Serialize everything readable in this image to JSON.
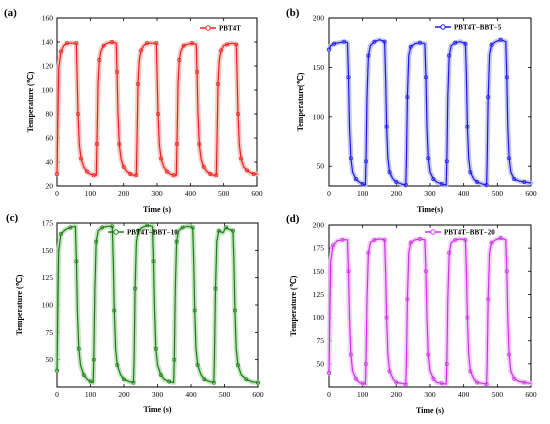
{
  "chart_data": [
    {
      "type": "line",
      "panel_label": "(a)",
      "xlabel": "Time (s)",
      "ylabel": "Temperature (℃)",
      "xlim": [
        0,
        600
      ],
      "ylim": [
        20,
        160
      ],
      "xticks": [
        0,
        100,
        200,
        300,
        400,
        500,
        600
      ],
      "yticks": [
        20,
        40,
        60,
        80,
        100,
        120,
        140,
        160
      ],
      "legend_position": "top-right",
      "series": [
        {
          "name": "PBT4T",
          "color": "#e8221b",
          "band_color": "#f7b7b4",
          "x": [
            0,
            5,
            12,
            20,
            30,
            45,
            58,
            60,
            63,
            67,
            72,
            80,
            90,
            100,
            110,
            118,
            120,
            123,
            127,
            132,
            140,
            150,
            165,
            178,
            180,
            183,
            187,
            192,
            200,
            210,
            220,
            230,
            238,
            240,
            243,
            247,
            252,
            260,
            270,
            285,
            298,
            300,
            303,
            307,
            312,
            320,
            330,
            340,
            350,
            358,
            360,
            363,
            367,
            372,
            380,
            390,
            405,
            418,
            420,
            423,
            427,
            432,
            440,
            450,
            460,
            470,
            478,
            480,
            483,
            487,
            492,
            500,
            510,
            525,
            538,
            540,
            543,
            547,
            552,
            560,
            570,
            580,
            590,
            600
          ],
          "y": [
            30,
            118,
            132,
            137,
            139,
            139,
            139,
            115,
            80,
            55,
            43,
            36,
            32,
            30,
            29,
            29,
            55,
            105,
            125,
            133,
            137,
            139,
            140,
            139,
            115,
            80,
            55,
            43,
            36,
            32,
            30,
            29,
            29,
            55,
            105,
            125,
            133,
            137,
            139,
            139,
            139,
            115,
            80,
            55,
            43,
            36,
            32,
            30,
            29,
            29,
            55,
            105,
            125,
            133,
            137,
            138,
            139,
            138,
            115,
            80,
            55,
            43,
            36,
            32,
            30,
            29,
            29,
            55,
            105,
            125,
            133,
            137,
            138,
            139,
            138,
            115,
            80,
            55,
            43,
            36,
            33,
            31,
            30,
            30
          ]
        }
      ]
    },
    {
      "type": "line",
      "panel_label": "(b)",
      "xlabel": "Time(s)",
      "ylabel": "Temperature(℃)",
      "xlim": [
        0,
        600
      ],
      "ylim": [
        30,
        200
      ],
      "xticks": [
        0,
        100,
        200,
        300,
        400,
        500,
        600
      ],
      "yticks": [
        50,
        100,
        150,
        200
      ],
      "legend_position": "top-right",
      "series": [
        {
          "name": "PBT4T−BBT−5",
          "color": "#1a1ae6",
          "band_color": "#b9b9f5",
          "x": [
            0,
            5,
            15,
            30,
            45,
            55,
            58,
            61,
            65,
            70,
            80,
            90,
            100,
            108,
            110,
            113,
            117,
            123,
            135,
            150,
            165,
            168,
            171,
            175,
            180,
            190,
            200,
            215,
            228,
            230,
            233,
            237,
            243,
            255,
            270,
            285,
            288,
            291,
            295,
            300,
            310,
            320,
            335,
            348,
            350,
            353,
            357,
            363,
            375,
            390,
            405,
            408,
            411,
            415,
            420,
            430,
            440,
            455,
            468,
            470,
            473,
            477,
            483,
            495,
            510,
            525,
            528,
            531,
            535,
            540,
            550,
            565,
            580,
            600
          ],
          "y": [
            168,
            172,
            174,
            175,
            176,
            175,
            140,
            90,
            58,
            44,
            37,
            34,
            32,
            31,
            55,
            120,
            162,
            172,
            176,
            178,
            176,
            140,
            90,
            58,
            44,
            37,
            34,
            32,
            31,
            55,
            120,
            162,
            171,
            174,
            175,
            174,
            140,
            90,
            58,
            44,
            37,
            34,
            32,
            31,
            55,
            120,
            162,
            172,
            175,
            176,
            174,
            140,
            90,
            58,
            44,
            37,
            34,
            32,
            31,
            55,
            120,
            163,
            173,
            176,
            178,
            176,
            140,
            90,
            58,
            44,
            37,
            35,
            34,
            33
          ]
        }
      ]
    },
    {
      "type": "line",
      "panel_label": "(c)",
      "xlabel": "Time (s)",
      "ylabel": "Temperature (℃)",
      "xlim": [
        0,
        600
      ],
      "ylim": [
        25,
        175
      ],
      "xticks": [
        0,
        100,
        200,
        300,
        400,
        500,
        600
      ],
      "yticks": [
        50,
        75,
        100,
        125,
        150,
        175
      ],
      "legend_position": "top-center",
      "series": [
        {
          "name": "PBT4T−BBT−10",
          "color": "#1e7d16",
          "band_color": "#b5dcb1",
          "x": [
            0,
            5,
            12,
            25,
            40,
            55,
            58,
            61,
            65,
            70,
            80,
            90,
            100,
            108,
            110,
            113,
            117,
            123,
            135,
            150,
            165,
            168,
            171,
            175,
            180,
            190,
            200,
            215,
            228,
            230,
            233,
            237,
            243,
            255,
            270,
            285,
            288,
            291,
            295,
            300,
            310,
            320,
            335,
            348,
            350,
            353,
            357,
            363,
            375,
            390,
            405,
            408,
            411,
            415,
            420,
            430,
            440,
            455,
            468,
            470,
            473,
            477,
            483,
            495,
            505,
            515,
            525,
            528,
            531,
            535,
            540,
            550,
            565,
            580,
            600
          ],
          "y": [
            40,
            150,
            165,
            169,
            171,
            172,
            140,
            95,
            60,
            45,
            36,
            32,
            30,
            29,
            50,
            115,
            158,
            168,
            171,
            172,
            172,
            140,
            95,
            60,
            45,
            36,
            32,
            30,
            29,
            50,
            115,
            158,
            168,
            171,
            173,
            172,
            140,
            95,
            60,
            45,
            36,
            32,
            30,
            29,
            50,
            115,
            158,
            168,
            171,
            172,
            171,
            140,
            95,
            60,
            45,
            36,
            32,
            30,
            29,
            50,
            115,
            158,
            168,
            166,
            171,
            169,
            168,
            140,
            95,
            60,
            45,
            36,
            32,
            30,
            29
          ]
        }
      ]
    },
    {
      "type": "line",
      "panel_label": "(d)",
      "xlabel": "Time (s)",
      "ylabel": "Temperature (℃)",
      "xlim": [
        0,
        600
      ],
      "ylim": [
        25,
        200
      ],
      "xticks": [
        0,
        100,
        200,
        300,
        400,
        500,
        600
      ],
      "yticks": [
        50,
        75,
        100,
        125,
        150,
        175,
        200
      ],
      "legend_position": "top-right",
      "series": [
        {
          "name": "PBT4T−BBT−20",
          "color": "#cc33e6",
          "band_color": "#efc2f7",
          "x": [
            0,
            5,
            12,
            25,
            40,
            55,
            58,
            61,
            65,
            70,
            80,
            90,
            100,
            108,
            110,
            113,
            117,
            123,
            135,
            150,
            165,
            168,
            171,
            175,
            180,
            190,
            200,
            215,
            228,
            230,
            233,
            237,
            243,
            255,
            270,
            285,
            288,
            291,
            295,
            300,
            310,
            320,
            335,
            348,
            350,
            353,
            357,
            363,
            375,
            390,
            405,
            408,
            411,
            415,
            420,
            430,
            440,
            455,
            468,
            470,
            473,
            477,
            483,
            495,
            510,
            525,
            528,
            531,
            535,
            540,
            550,
            565,
            580,
            600
          ],
          "y": [
            40,
            160,
            178,
            183,
            184,
            184,
            150,
            100,
            60,
            42,
            34,
            30,
            29,
            28,
            50,
            120,
            170,
            181,
            184,
            185,
            184,
            150,
            100,
            60,
            42,
            34,
            30,
            29,
            28,
            50,
            120,
            170,
            181,
            184,
            185,
            184,
            150,
            100,
            60,
            42,
            34,
            30,
            29,
            28,
            50,
            120,
            170,
            181,
            184,
            185,
            184,
            150,
            100,
            60,
            42,
            34,
            30,
            29,
            28,
            50,
            120,
            170,
            181,
            184,
            186,
            184,
            150,
            100,
            60,
            42,
            34,
            31,
            30,
            29
          ]
        }
      ]
    }
  ]
}
